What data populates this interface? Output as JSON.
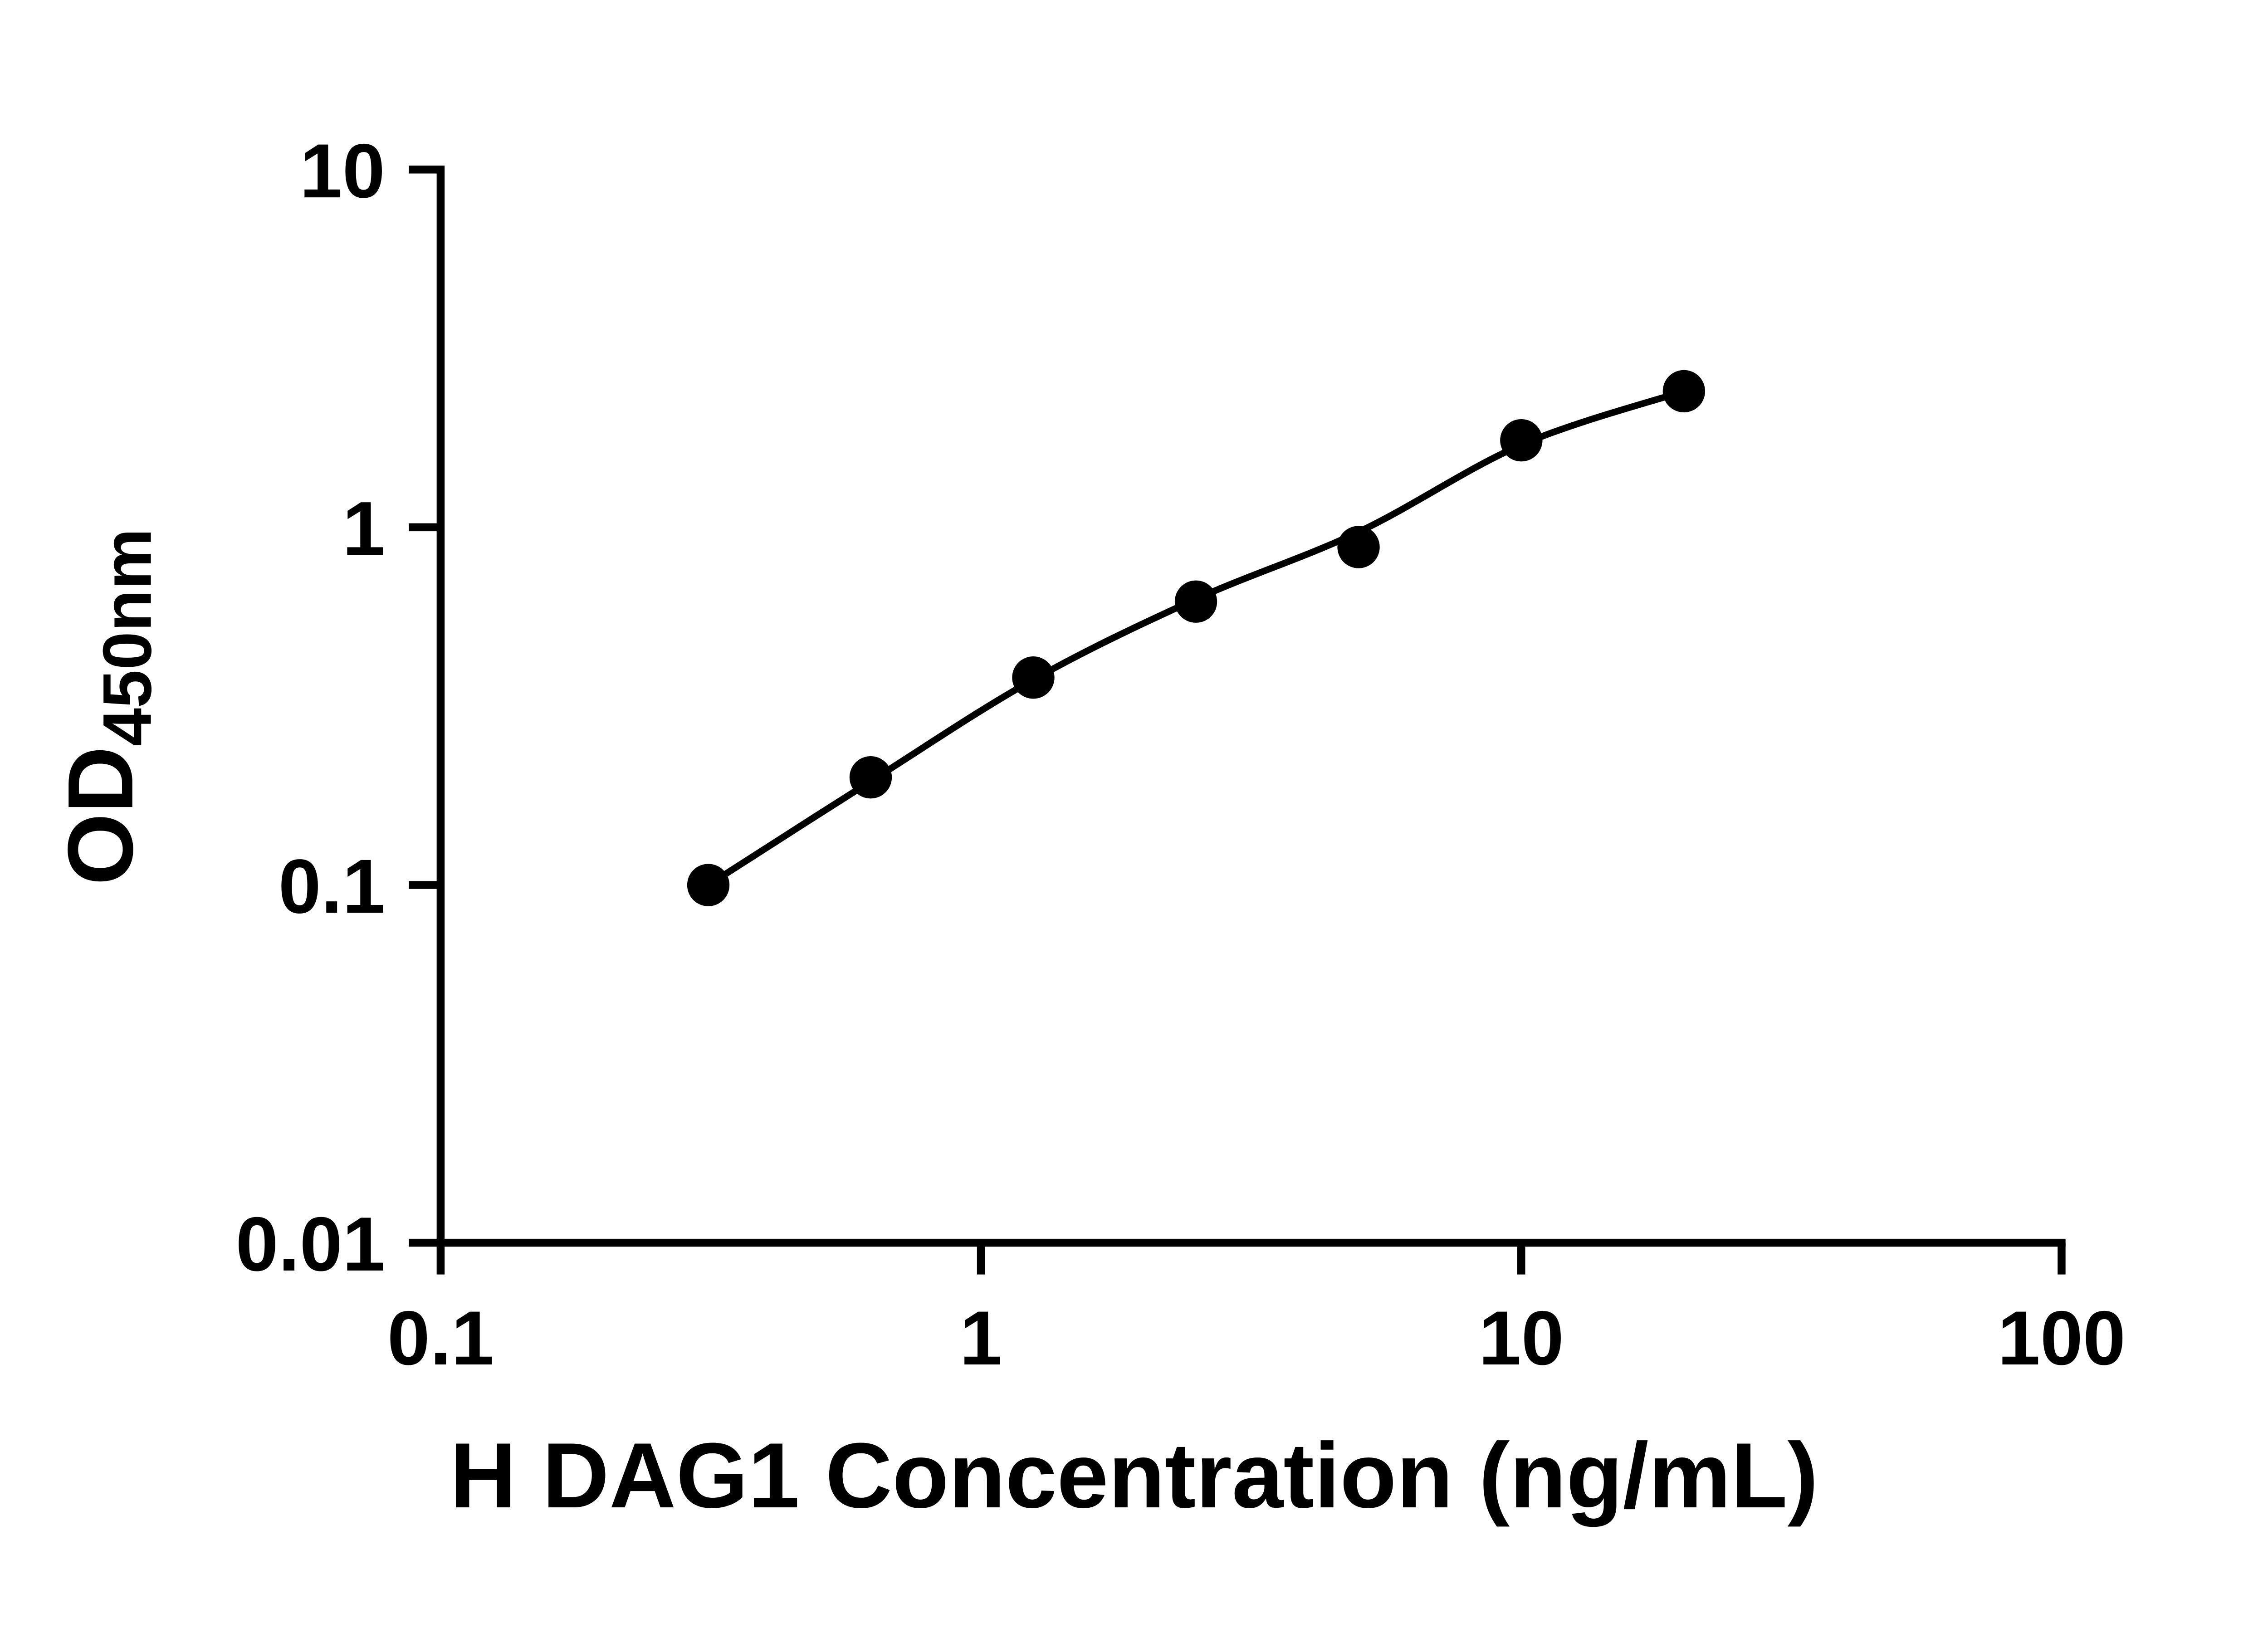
{
  "chart_data": {
    "type": "scatter",
    "title": "",
    "xlabel": "H DAG1 Concentration (ng/mL)",
    "ylabel": "OD450nm",
    "ylabel_base": "OD",
    "ylabel_sub": "450nm",
    "x_scale": "log",
    "y_scale": "log",
    "xlim": [
      0.1,
      100
    ],
    "ylim": [
      0.01,
      10
    ],
    "x_ticks": [
      0.1,
      1,
      10,
      100
    ],
    "x_tick_labels": [
      "0.1",
      "1",
      "10",
      "100"
    ],
    "y_ticks": [
      0.01,
      0.1,
      1,
      10
    ],
    "y_tick_labels": [
      "0.01",
      "0.1",
      "1",
      "10"
    ],
    "grid": false,
    "legend": null,
    "marker_color": "#000000",
    "line_color": "#000000",
    "points": [
      {
        "x": 0.313,
        "y": 0.1
      },
      {
        "x": 0.625,
        "y": 0.2
      },
      {
        "x": 1.25,
        "y": 0.38
      },
      {
        "x": 2.5,
        "y": 0.62
      },
      {
        "x": 5,
        "y": 0.88
      },
      {
        "x": 10,
        "y": 1.75
      },
      {
        "x": 20,
        "y": 2.4
      }
    ],
    "curve_points": [
      {
        "x": 0.313,
        "y": 0.1
      },
      {
        "x": 0.625,
        "y": 0.195
      },
      {
        "x": 1.25,
        "y": 0.375
      },
      {
        "x": 2.5,
        "y": 0.63
      },
      {
        "x": 5,
        "y": 0.97
      },
      {
        "x": 10,
        "y": 1.7
      },
      {
        "x": 20,
        "y": 2.4
      }
    ]
  }
}
